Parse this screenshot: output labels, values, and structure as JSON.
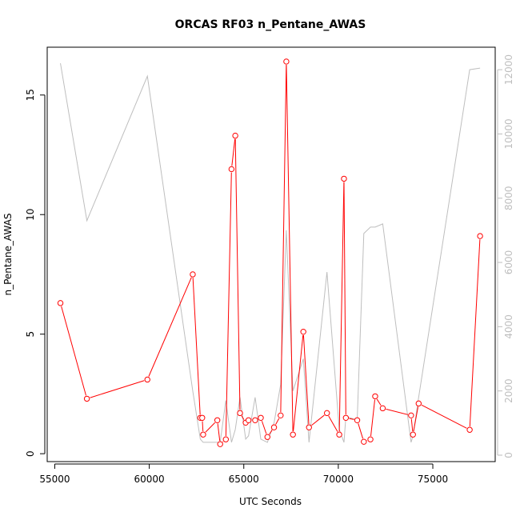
{
  "chart_data": {
    "type": "line",
    "title": "ORCAS RF03 n_Pentane_AWAS",
    "xlabel": "UTC Seconds",
    "ylabel": "n_Pentane_AWAS",
    "xlim": [
      54600,
      78300
    ],
    "ylim": [
      -0.33,
      17.0
    ],
    "y2lim": [
      -200,
      12700
    ],
    "xticks": [
      55000,
      60000,
      65000,
      70000,
      75000
    ],
    "yticks": [
      0,
      5,
      10,
      15
    ],
    "y2ticks": [
      0,
      2000,
      4000,
      6000,
      8000,
      10000,
      12000
    ],
    "colors": {
      "primary": "#ff0000",
      "secondary": "#bebebe"
    },
    "series": [
      {
        "axis": "left",
        "style": "line-points",
        "x": [
          55300,
          56700,
          59900,
          62300,
          62700,
          62800,
          62850,
          63600,
          63750,
          64050,
          64350,
          64550,
          64800,
          65100,
          65250,
          65600,
          65900,
          66250,
          66600,
          66950,
          67250,
          67600,
          68150,
          68450,
          69400,
          70050,
          70300,
          70400,
          71000,
          71350,
          71700,
          71950,
          72350,
          73850,
          73950,
          74250,
          76950,
          77500
        ],
        "y": [
          6.3,
          2.3,
          3.1,
          7.5,
          1.5,
          1.5,
          0.8,
          1.4,
          0.4,
          0.6,
          11.9,
          13.3,
          1.7,
          1.3,
          1.4,
          1.4,
          1.5,
          0.7,
          1.1,
          1.6,
          16.4,
          0.8,
          5.1,
          1.1,
          1.7,
          0.8,
          11.5,
          1.5,
          1.4,
          0.5,
          0.6,
          2.4,
          1.9,
          1.6,
          0.8,
          2.1,
          1.0,
          9.1
        ]
      },
      {
        "axis": "right",
        "style": "line",
        "x": [
          55300,
          56700,
          59900,
          62300,
          62700,
          62850,
          63600,
          63750,
          64050,
          64350,
          64550,
          64800,
          65100,
          65250,
          65600,
          65900,
          66250,
          66600,
          66950,
          67250,
          67600,
          68150,
          68450,
          69400,
          70050,
          70300,
          70400,
          71000,
          71350,
          71700,
          71950,
          72350,
          73850,
          73950,
          74250,
          76950,
          77500
        ],
        "y": [
          12200,
          7300,
          11800,
          2000,
          500,
          400,
          400,
          400,
          1700,
          400,
          800,
          1800,
          500,
          600,
          1800,
          500,
          400,
          1000,
          2200,
          7000,
          2000,
          3000,
          400,
          5700,
          800,
          400,
          1200,
          1100,
          6900,
          7100,
          7100,
          7200,
          400,
          600,
          1800,
          12000,
          12050
        ]
      }
    ]
  }
}
